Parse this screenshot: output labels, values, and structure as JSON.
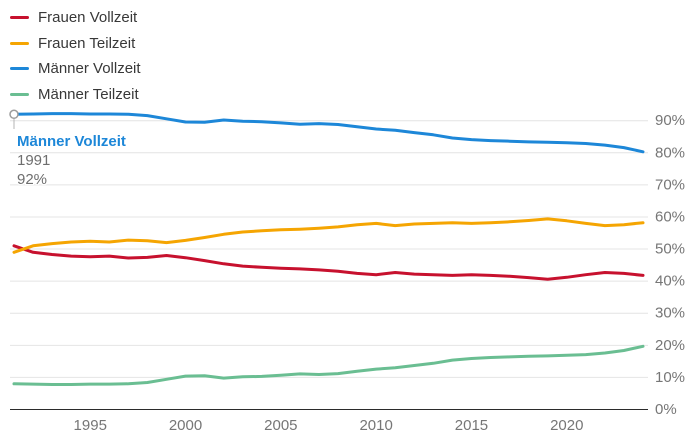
{
  "chart_data": {
    "type": "line",
    "title": "",
    "xlabel": "",
    "ylabel": "",
    "x": [
      1991,
      1992,
      1993,
      1994,
      1995,
      1996,
      1997,
      1998,
      1999,
      2000,
      2001,
      2002,
      2003,
      2004,
      2005,
      2006,
      2007,
      2008,
      2009,
      2010,
      2011,
      2012,
      2013,
      2014,
      2015,
      2016,
      2017,
      2018,
      2019,
      2020,
      2021,
      2022,
      2023,
      2024
    ],
    "series": [
      {
        "name": "Frauen Vollzeit",
        "color": "#c7112e",
        "values": [
          51.0,
          49.0,
          48.3,
          47.8,
          47.6,
          47.8,
          47.2,
          47.4,
          48.0,
          47.3,
          46.4,
          45.4,
          44.7,
          44.3,
          44.0,
          43.8,
          43.5,
          43.1,
          42.4,
          42.0,
          42.7,
          42.2,
          42.0,
          41.8,
          42.0,
          41.8,
          41.5,
          41.1,
          40.6,
          41.2,
          42.0,
          42.7,
          42.4,
          41.8
        ]
      },
      {
        "name": "Frauen Teilzeit",
        "color": "#f5a502",
        "values": [
          49.0,
          51.0,
          51.7,
          52.2,
          52.4,
          52.2,
          52.8,
          52.6,
          52.0,
          52.7,
          53.6,
          54.6,
          55.3,
          55.7,
          56.0,
          56.2,
          56.5,
          56.9,
          57.6,
          58.0,
          57.3,
          57.8,
          58.0,
          58.2,
          58.0,
          58.2,
          58.5,
          58.9,
          59.4,
          58.8,
          58.0,
          57.3,
          57.6,
          58.2
        ]
      },
      {
        "name": "Männer Vollzeit",
        "color": "#1d87d8",
        "values": [
          92.0,
          92.1,
          92.2,
          92.2,
          92.1,
          92.1,
          92.0,
          91.6,
          90.6,
          89.6,
          89.5,
          90.2,
          89.8,
          89.7,
          89.3,
          88.9,
          89.1,
          88.8,
          88.1,
          87.4,
          87.0,
          86.3,
          85.6,
          84.6,
          84.1,
          83.8,
          83.6,
          83.4,
          83.3,
          83.1,
          82.9,
          82.4,
          81.6,
          80.3
        ]
      },
      {
        "name": "Männer Teilzeit",
        "color": "#6abe92",
        "values": [
          8.0,
          7.9,
          7.8,
          7.8,
          7.9,
          7.9,
          8.0,
          8.4,
          9.4,
          10.4,
          10.5,
          9.8,
          10.2,
          10.3,
          10.7,
          11.1,
          10.9,
          11.2,
          11.9,
          12.6,
          13.0,
          13.7,
          14.4,
          15.4,
          15.9,
          16.2,
          16.4,
          16.6,
          16.7,
          16.9,
          17.1,
          17.6,
          18.4,
          19.7
        ]
      }
    ],
    "xticks": [
      1995,
      2000,
      2005,
      2010,
      2015,
      2020
    ],
    "yticks": [
      "0%",
      "10%",
      "20%",
      "30%",
      "40%",
      "50%",
      "60%",
      "70%",
      "80%",
      "90%"
    ],
    "xlim": [
      1991,
      2024
    ],
    "ylim": [
      0,
      93
    ],
    "grid": true,
    "legend_position": "top-left",
    "annotation": {
      "series": "Männer Vollzeit",
      "year": "1991",
      "value": "92%",
      "anchor_x": 1991,
      "anchor_y": 92
    },
    "style": {
      "gridline_color": "#e4e4e4",
      "baseline_color": "#2b2b2b",
      "axis_label_color": "#767676",
      "marker_stroke_color": "#9c9c9c",
      "connector_color": "#b5b5b5",
      "tooltip_title_color": "#1d87d8",
      "tooltip_text_color": "#6e6e6e"
    }
  }
}
